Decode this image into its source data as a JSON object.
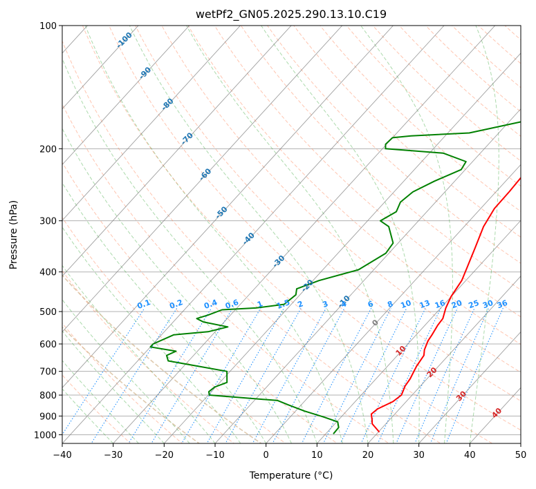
{
  "chart_data": {
    "type": "line",
    "title": "wetPf2_GN05.2025.290.13.10.C19",
    "xlabel": "Temperature (°C)",
    "ylabel": "Pressure (hPa)",
    "xlim": [
      -40,
      50
    ],
    "ylim": [
      1050,
      100
    ],
    "y_scale": "log",
    "grid": true,
    "x_ticks": [
      -40,
      -30,
      -20,
      -10,
      0,
      10,
      20,
      30,
      40,
      50
    ],
    "y_ticks": [
      100,
      200,
      300,
      400,
      500,
      600,
      700,
      800,
      900,
      1000
    ],
    "colors": {
      "temperature": "#ff0000",
      "dewpoint": "#008000",
      "isotherm": "#808080",
      "dry_adiabat": "#ff7f50",
      "moist_adiabat": "#2ca02c",
      "mixing_ratio": "#1e90ff",
      "freezing_level": "#d2b48c",
      "isotherm_label": "#1f77b4",
      "warm_label": "#d62728"
    },
    "series": [
      {
        "key": "temperature",
        "values": [
          [
            20.2,
            985
          ],
          [
            17.3,
            940
          ],
          [
            16.6,
            920
          ],
          [
            15.4,
            890
          ],
          [
            15.7,
            865
          ],
          [
            17.4,
            830
          ],
          [
            17.9,
            800
          ],
          [
            17.0,
            760
          ],
          [
            16.7,
            730
          ],
          [
            15.7,
            680
          ],
          [
            15.2,
            640
          ],
          [
            14.3,
            620
          ],
          [
            13.4,
            590
          ],
          [
            13.1,
            570
          ],
          [
            12.5,
            540
          ],
          [
            12.3,
            520
          ],
          [
            11.0,
            490
          ],
          [
            10.0,
            460
          ],
          [
            9.2,
            420
          ],
          [
            7.9,
            390
          ],
          [
            6.0,
            350
          ],
          [
            3.8,
            310
          ],
          [
            2.7,
            280
          ],
          [
            2.6,
            255
          ],
          [
            2.3,
            230
          ],
          [
            3.1,
            215
          ],
          [
            5.6,
            200
          ],
          [
            7.3,
            185
          ],
          [
            8.3,
            170
          ],
          [
            9.6,
            155
          ],
          [
            11.1,
            143
          ],
          [
            12.5,
            135
          ],
          [
            13.1,
            125
          ],
          [
            14.5,
            115
          ],
          [
            15.3,
            107
          ],
          [
            14.9,
            100
          ]
        ]
      },
      {
        "key": "dewpoint",
        "values": [
          [
            11.5,
            995
          ],
          [
            11.4,
            960
          ],
          [
            10.2,
            930
          ],
          [
            6.6,
            905
          ],
          [
            1.7,
            875
          ],
          [
            -2.6,
            845
          ],
          [
            -5.4,
            825
          ],
          [
            -19.8,
            800
          ],
          [
            -20.5,
            785
          ],
          [
            -20.2,
            765
          ],
          [
            -18.6,
            745
          ],
          [
            -20.6,
            700
          ],
          [
            -34.0,
            660
          ],
          [
            -35.3,
            640
          ],
          [
            -34.2,
            625
          ],
          [
            -40.0,
            610
          ],
          [
            -40.0,
            600
          ],
          [
            -37.6,
            570
          ],
          [
            -31.4,
            560
          ],
          [
            -28.4,
            545
          ],
          [
            -34.1,
            530
          ],
          [
            -36.0,
            520
          ],
          [
            -34.4,
            510
          ],
          [
            -32.6,
            495
          ],
          [
            -26.3,
            490
          ],
          [
            -21.4,
            480
          ],
          [
            -20.8,
            455
          ],
          [
            -21.7,
            440
          ],
          [
            -18.8,
            420
          ],
          [
            -13.0,
            395
          ],
          [
            -10.6,
            360
          ],
          [
            -11.0,
            340
          ],
          [
            -14.8,
            310
          ],
          [
            -17.5,
            300
          ],
          [
            -16.0,
            285
          ],
          [
            -16.9,
            270
          ],
          [
            -16.3,
            255
          ],
          [
            -14.0,
            240
          ],
          [
            -10.8,
            225
          ],
          [
            -11.3,
            215
          ],
          [
            -17.3,
            205
          ],
          [
            -29.4,
            200
          ],
          [
            -30.2,
            195
          ],
          [
            -30.0,
            188
          ],
          [
            -26.7,
            186
          ],
          [
            -15.8,
            183
          ],
          [
            -7.7,
            172
          ],
          [
            -5.2,
            162
          ],
          [
            -5.5,
            155
          ],
          [
            -6.2,
            146
          ],
          [
            -5.4,
            140
          ],
          [
            -3.8,
            125
          ],
          [
            -6.3,
            118
          ],
          [
            -11.6,
            113
          ],
          [
            -11.0,
            108
          ],
          [
            -3.5,
            102
          ],
          [
            -2.6,
            100
          ]
        ]
      }
    ],
    "annotations": {
      "isotherm_labels": [
        "-100",
        "-90",
        "-80",
        "-70",
        "-60",
        "-50",
        "-40",
        "-30",
        "-20",
        "-10",
        "0",
        "10",
        "20",
        "30",
        "40"
      ],
      "mixing_ratio_labels": [
        "0.1",
        "0.2",
        "0.4",
        "0.6",
        "1",
        "1.5",
        "2",
        "3",
        "4",
        "6",
        "8",
        "10",
        "13",
        "16",
        "20",
        "25",
        "30",
        "36"
      ]
    }
  }
}
